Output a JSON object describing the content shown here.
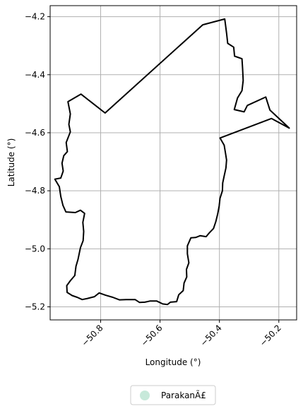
{
  "chart_data": {
    "type": "map",
    "xlabel": "Longitude (°)",
    "ylabel": "Latitude (°)",
    "xlim": [
      -50.97,
      -50.14
    ],
    "ylim": [
      -5.245,
      -4.162
    ],
    "x_ticks": [
      {
        "value": -50.8,
        "label": "−50.8"
      },
      {
        "value": -50.6,
        "label": "−50.6"
      },
      {
        "value": -50.4,
        "label": "−50.4"
      },
      {
        "value": -50.2,
        "label": "−50.2"
      }
    ],
    "y_ticks": [
      {
        "value": -4.2,
        "label": "−4.2"
      },
      {
        "value": -4.4,
        "label": "−4.4"
      },
      {
        "value": -4.6,
        "label": "−4.6"
      },
      {
        "value": -4.8,
        "label": "−4.8"
      },
      {
        "value": -5.0,
        "label": "−5.0"
      },
      {
        "value": -5.2,
        "label": "−5.2"
      }
    ],
    "grid": true,
    "legend": {
      "placement": "bottom-center",
      "entries": [
        {
          "label": "ParakanÃ£",
          "color": "#c7e9da"
        }
      ]
    },
    "boundary_color": "#000000",
    "boundary": [
      [
        -50.382,
        -4.208
      ],
      [
        -50.456,
        -4.228
      ],
      [
        -50.785,
        -4.532
      ],
      [
        -50.866,
        -4.467
      ],
      [
        -50.91,
        -4.493
      ],
      [
        -50.902,
        -4.535
      ],
      [
        -50.907,
        -4.571
      ],
      [
        -50.902,
        -4.597
      ],
      [
        -50.916,
        -4.634
      ],
      [
        -50.912,
        -4.665
      ],
      [
        -50.924,
        -4.679
      ],
      [
        -50.93,
        -4.705
      ],
      [
        -50.926,
        -4.732
      ],
      [
        -50.934,
        -4.756
      ],
      [
        -50.954,
        -4.76
      ],
      [
        -50.939,
        -4.786
      ],
      [
        -50.934,
        -4.82
      ],
      [
        -50.927,
        -4.85
      ],
      [
        -50.917,
        -4.873
      ],
      [
        -50.885,
        -4.875
      ],
      [
        -50.868,
        -4.867
      ],
      [
        -50.854,
        -4.878
      ],
      [
        -50.86,
        -4.909
      ],
      [
        -50.857,
        -4.94
      ],
      [
        -50.859,
        -4.972
      ],
      [
        -50.868,
        -4.996
      ],
      [
        -50.876,
        -5.036
      ],
      [
        -50.883,
        -5.06
      ],
      [
        -50.887,
        -5.092
      ],
      [
        -50.902,
        -5.11
      ],
      [
        -50.914,
        -5.127
      ],
      [
        -50.913,
        -5.15
      ],
      [
        -50.896,
        -5.161
      ],
      [
        -50.879,
        -5.167
      ],
      [
        -50.862,
        -5.175
      ],
      [
        -50.844,
        -5.171
      ],
      [
        -50.821,
        -5.165
      ],
      [
        -50.805,
        -5.152
      ],
      [
        -50.783,
        -5.16
      ],
      [
        -50.759,
        -5.167
      ],
      [
        -50.737,
        -5.176
      ],
      [
        -50.714,
        -5.175
      ],
      [
        -50.684,
        -5.175
      ],
      [
        -50.669,
        -5.185
      ],
      [
        -50.651,
        -5.184
      ],
      [
        -50.634,
        -5.18
      ],
      [
        -50.611,
        -5.18
      ],
      [
        -50.591,
        -5.19
      ],
      [
        -50.575,
        -5.192
      ],
      [
        -50.565,
        -5.184
      ],
      [
        -50.544,
        -5.182
      ],
      [
        -50.537,
        -5.158
      ],
      [
        -50.522,
        -5.144
      ],
      [
        -50.519,
        -5.118
      ],
      [
        -50.51,
        -5.097
      ],
      [
        -50.511,
        -5.071
      ],
      [
        -50.503,
        -5.048
      ],
      [
        -50.508,
        -5.017
      ],
      [
        -50.508,
        -4.99
      ],
      [
        -50.496,
        -4.962
      ],
      [
        -50.48,
        -4.961
      ],
      [
        -50.465,
        -4.955
      ],
      [
        -50.445,
        -4.958
      ],
      [
        -50.434,
        -4.945
      ],
      [
        -50.42,
        -4.93
      ],
      [
        -50.412,
        -4.906
      ],
      [
        -50.406,
        -4.88
      ],
      [
        -50.401,
        -4.853
      ],
      [
        -50.398,
        -4.826
      ],
      [
        -50.39,
        -4.8
      ],
      [
        -50.389,
        -4.773
      ],
      [
        -50.384,
        -4.749
      ],
      [
        -50.378,
        -4.721
      ],
      [
        -50.376,
        -4.694
      ],
      [
        -50.38,
        -4.668
      ],
      [
        -50.384,
        -4.643
      ],
      [
        -50.398,
        -4.618
      ],
      [
        -50.225,
        -4.551
      ],
      [
        -50.165,
        -4.584
      ],
      [
        -50.23,
        -4.522
      ],
      [
        -50.244,
        -4.477
      ],
      [
        -50.306,
        -4.506
      ],
      [
        -50.317,
        -4.528
      ],
      [
        -50.35,
        -4.52
      ],
      [
        -50.339,
        -4.48
      ],
      [
        -50.324,
        -4.455
      ],
      [
        -50.32,
        -4.42
      ],
      [
        -50.322,
        -4.38
      ],
      [
        -50.324,
        -4.345
      ],
      [
        -50.349,
        -4.336
      ],
      [
        -50.352,
        -4.305
      ],
      [
        -50.372,
        -4.292
      ],
      [
        -50.376,
        -4.257
      ],
      [
        -50.382,
        -4.208
      ]
    ]
  }
}
